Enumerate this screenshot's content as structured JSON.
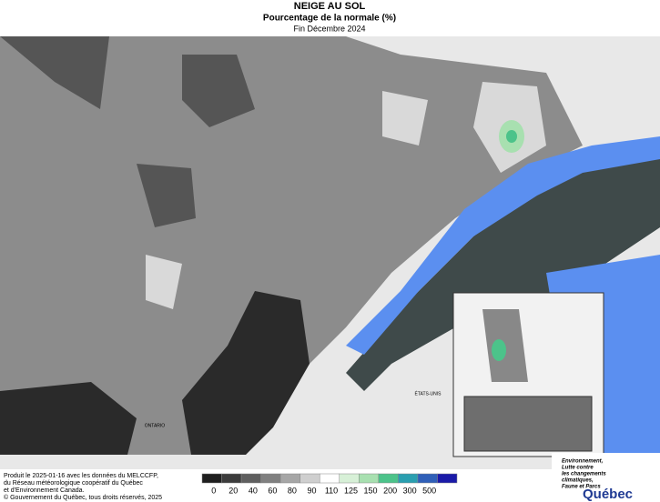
{
  "header": {
    "title": "NEIGE AU SOL",
    "subtitle": "Pourcentage de la normale (%)",
    "period": "Fin Décembre 2024"
  },
  "map_labels": {
    "ontario": "ONTARIO",
    "usa": "ÉTATS-UNIS"
  },
  "legend": {
    "colors": [
      "#1f1f1f",
      "#3c3c3c",
      "#5f5f5f",
      "#808080",
      "#a6a6a6",
      "#cfcfcf",
      "#ffffff",
      "#d7f0d7",
      "#a8e0b0",
      "#4cc38a",
      "#2a9fb0",
      "#2f5fb8",
      "#1a1aa8"
    ],
    "ticks": [
      0,
      20,
      40,
      60,
      80,
      90,
      110,
      125,
      150,
      200,
      300,
      500
    ]
  },
  "credits": [
    "Produit le 2025-01-16 avec les données du MELCCFP,",
    "du Réseau météorologique coopératif du Québec",
    "et d'Environnement Canada."
  ],
  "copyright": "© Gouvernement du Québec, tous droits réservés, 2025",
  "logo": {
    "lines": [
      "Environnement,",
      "Lutte contre",
      "les changements",
      "climatiques,",
      "Faune et Parcs"
    ],
    "name": "Québec"
  }
}
